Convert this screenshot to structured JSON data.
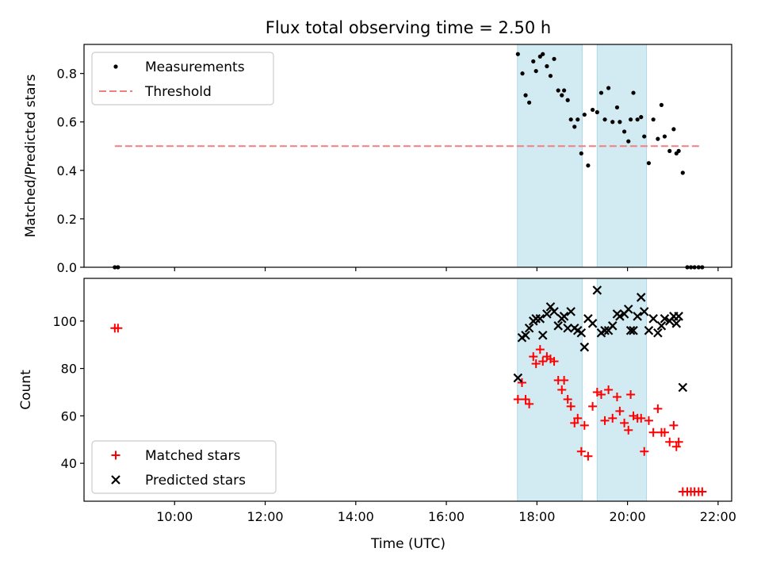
{
  "title": "Flux total observing time = 2.50 h",
  "xlabel": "Time (UTC)",
  "colors": {
    "measurements": "#000000",
    "threshold": "#f08080",
    "matched": "#ff0000",
    "predicted": "#000000",
    "shade": "#add8e6"
  },
  "chart_data": [
    {
      "type": "scatter",
      "ylabel": "Matched/Predicted stars",
      "ylim": [
        0,
        0.92
      ],
      "yticks": [
        0.0,
        0.2,
        0.4,
        0.6,
        0.8
      ],
      "ytick_labels": [
        "0.0",
        "0.2",
        "0.4",
        "0.6",
        "0.8"
      ],
      "xlim": [
        8.0,
        22.3
      ],
      "legend_position": "upper left",
      "shaded_intervals": [
        [
          17.57,
          19.0
        ],
        [
          19.33,
          20.42
        ]
      ],
      "threshold": {
        "name": "Threshold",
        "y": 0.5,
        "x_range": [
          8.68,
          21.65
        ]
      },
      "series": [
        {
          "name": "Measurements",
          "x": [
            8.68,
            8.75,
            17.58,
            17.68,
            17.75,
            17.83,
            17.92,
            17.98,
            18.07,
            18.13,
            18.22,
            18.3,
            18.38,
            18.47,
            18.55,
            18.6,
            18.68,
            18.75,
            18.83,
            18.9,
            18.98,
            19.05,
            19.13,
            19.23,
            19.33,
            19.42,
            19.5,
            19.58,
            19.67,
            19.77,
            19.83,
            19.93,
            20.02,
            20.07,
            20.13,
            20.22,
            20.3,
            20.37,
            20.47,
            20.57,
            20.67,
            20.75,
            20.82,
            20.93,
            21.02,
            21.08,
            21.13,
            21.22,
            21.32,
            21.4,
            21.48,
            21.57,
            21.65
          ],
          "y": [
            0.0,
            0.0,
            0.88,
            0.8,
            0.71,
            0.68,
            0.85,
            0.81,
            0.87,
            0.88,
            0.83,
            0.79,
            0.86,
            0.73,
            0.71,
            0.73,
            0.69,
            0.61,
            0.58,
            0.61,
            0.47,
            0.63,
            0.42,
            0.65,
            0.64,
            0.72,
            0.61,
            0.74,
            0.6,
            0.66,
            0.6,
            0.56,
            0.52,
            0.61,
            0.72,
            0.61,
            0.62,
            0.54,
            0.43,
            0.61,
            0.53,
            0.67,
            0.54,
            0.48,
            0.57,
            0.47,
            0.48,
            0.39,
            0.0,
            0.0,
            0.0,
            0.0,
            0.0
          ]
        }
      ]
    },
    {
      "type": "scatter",
      "ylabel": "Count",
      "ylim": [
        24,
        118
      ],
      "yticks": [
        40,
        60,
        80,
        100
      ],
      "ytick_labels": [
        "40",
        "60",
        "80",
        "100"
      ],
      "xlim": [
        8.0,
        22.3
      ],
      "xticks": [
        10,
        12,
        14,
        16,
        18,
        20,
        22
      ],
      "xtick_labels": [
        "10:00",
        "12:00",
        "14:00",
        "16:00",
        "18:00",
        "20:00",
        "22:00"
      ],
      "legend_position": "lower left",
      "shaded_intervals": [
        [
          17.57,
          19.0
        ],
        [
          19.33,
          20.42
        ]
      ],
      "series": [
        {
          "name": "Matched stars",
          "marker": "+",
          "x": [
            8.68,
            8.75,
            17.58,
            17.67,
            17.75,
            17.83,
            17.92,
            17.98,
            18.07,
            18.13,
            18.22,
            18.3,
            18.38,
            18.47,
            18.55,
            18.6,
            18.68,
            18.75,
            18.83,
            18.9,
            18.98,
            19.05,
            19.13,
            19.23,
            19.33,
            19.42,
            19.5,
            19.58,
            19.67,
            19.77,
            19.83,
            19.93,
            20.02,
            20.07,
            20.13,
            20.22,
            20.3,
            20.37,
            20.47,
            20.57,
            20.67,
            20.75,
            20.82,
            20.93,
            21.02,
            21.08,
            21.13,
            21.22,
            21.32,
            21.4,
            21.48,
            21.57,
            21.65
          ],
          "y": [
            97,
            97,
            67,
            74,
            67,
            65,
            85,
            82,
            88,
            83,
            85,
            84,
            83,
            75,
            71,
            75,
            67,
            64,
            57,
            59,
            45,
            56,
            43,
            64,
            70,
            69,
            58,
            71,
            59,
            68,
            62,
            57,
            54,
            69,
            60,
            59,
            59,
            45,
            58,
            53,
            63,
            53,
            53,
            49,
            56,
            47,
            49,
            28,
            28,
            28,
            28,
            28,
            28
          ]
        },
        {
          "name": "Predicted stars",
          "marker": "x",
          "x": [
            17.58,
            17.67,
            17.75,
            17.83,
            17.92,
            17.98,
            18.07,
            18.13,
            18.22,
            18.3,
            18.38,
            18.47,
            18.55,
            18.6,
            18.68,
            18.75,
            18.83,
            18.9,
            18.98,
            19.05,
            19.13,
            19.23,
            19.33,
            19.42,
            19.5,
            19.58,
            19.67,
            19.77,
            19.83,
            19.93,
            20.02,
            20.07,
            20.13,
            20.22,
            20.3,
            20.37,
            20.47,
            20.57,
            20.67,
            20.75,
            20.82,
            20.93,
            21.02,
            21.08,
            21.13,
            21.22
          ],
          "y": [
            76,
            93,
            94,
            97,
            100,
            101,
            101,
            94,
            103,
            106,
            104,
            98,
            101,
            102,
            97,
            104,
            97,
            96,
            95,
            89,
            101,
            99,
            113,
            95,
            96,
            96,
            98,
            103,
            102,
            103,
            105,
            96,
            96,
            102,
            110,
            104,
            96,
            101,
            95,
            98,
            101,
            100,
            102,
            99,
            102,
            72
          ]
        }
      ]
    }
  ]
}
